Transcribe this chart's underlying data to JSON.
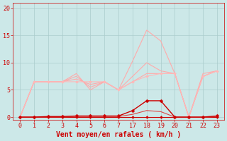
{
  "background_color": "#cce8e8",
  "grid_color": "#aacccc",
  "xlabel": "Vent moyen/en rafales ( km/h )",
  "xlabel_color": "#cc0000",
  "xlabel_fontsize": 7,
  "tick_color": "#cc0000",
  "tick_fontsize": 6,
  "ylim": [
    -0.5,
    21
  ],
  "yticks": [
    0,
    5,
    10,
    15,
    20
  ],
  "xlabels": [
    "0",
    "1",
    "2",
    "3",
    "4",
    "5",
    "6",
    "7",
    "17",
    "18",
    "19",
    "20",
    "21",
    "22",
    "23"
  ],
  "line_series": [
    {
      "y": [
        0.0,
        6.5,
        6.5,
        6.5,
        8.0,
        5.0,
        6.5,
        5.0,
        10.3,
        16.0,
        14.0,
        8.0,
        0.0,
        8.0,
        8.5
      ],
      "color": "#ffaaaa",
      "linewidth": 0.8,
      "marker": null,
      "zorder": 2
    },
    {
      "y": [
        0.0,
        6.5,
        6.5,
        6.5,
        7.5,
        5.5,
        6.5,
        5.0,
        7.5,
        10.0,
        8.5,
        8.0,
        0.0,
        7.5,
        8.5
      ],
      "color": "#ffaaaa",
      "linewidth": 0.8,
      "marker": null,
      "zorder": 2
    },
    {
      "y": [
        0.0,
        6.5,
        6.5,
        6.5,
        7.0,
        6.0,
        6.5,
        5.0,
        6.5,
        8.0,
        8.0,
        8.0,
        0.0,
        7.5,
        8.5
      ],
      "color": "#ffaaaa",
      "linewidth": 0.8,
      "marker": null,
      "zorder": 2
    },
    {
      "y": [
        0.0,
        6.5,
        6.5,
        6.5,
        6.5,
        6.5,
        6.5,
        5.0,
        6.5,
        7.5,
        8.0,
        8.0,
        0.0,
        7.5,
        8.5
      ],
      "color": "#ffb8b8",
      "linewidth": 0.8,
      "marker": "D",
      "markersize": 2,
      "zorder": 3
    },
    {
      "y": [
        0.0,
        0.0,
        0.1,
        0.1,
        0.2,
        0.2,
        0.2,
        0.2,
        1.2,
        3.0,
        3.0,
        0.0,
        0.0,
        0.0,
        0.2
      ],
      "color": "#cc0000",
      "linewidth": 1.0,
      "marker": "D",
      "markersize": 2.5,
      "zorder": 5
    },
    {
      "y": [
        0.0,
        0.0,
        0.05,
        0.05,
        0.1,
        0.1,
        0.1,
        0.1,
        0.5,
        1.2,
        1.0,
        0.0,
        0.0,
        0.0,
        0.1
      ],
      "color": "#dd4444",
      "linewidth": 0.8,
      "marker": null,
      "zorder": 4
    },
    {
      "y": [
        0.0,
        0.0,
        0.0,
        0.0,
        0.0,
        0.0,
        0.0,
        0.0,
        0.0,
        0.0,
        0.0,
        0.0,
        0.0,
        0.0,
        0.0
      ],
      "color": "#cc0000",
      "linewidth": 0.8,
      "marker": "D",
      "markersize": 2,
      "zorder": 3
    }
  ]
}
